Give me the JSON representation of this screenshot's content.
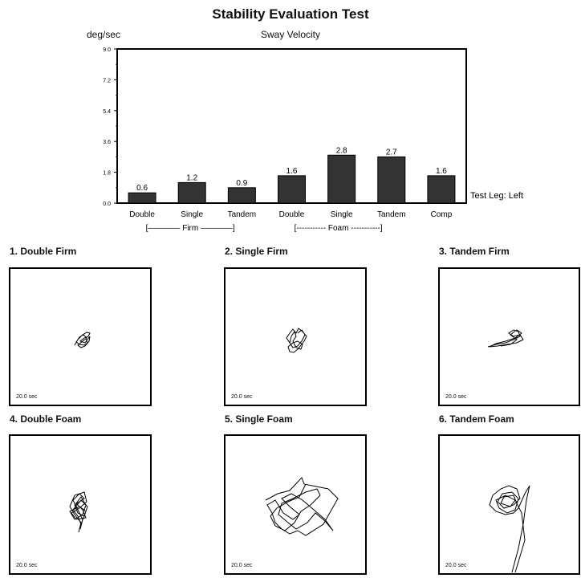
{
  "title": "Stability Evaluation Test",
  "chart_data": {
    "type": "bar",
    "title": "Sway Velocity",
    "ylabel": "deg/sec",
    "ylim": [
      0,
      9.0
    ],
    "yticks": [
      "0.0",
      "1.8",
      "3.6",
      "5.4",
      "7.2",
      "9.0"
    ],
    "categories": [
      "Double",
      "Single",
      "Tandem",
      "Double",
      "Single",
      "Tandem",
      "Comp"
    ],
    "values": [
      0.6,
      1.2,
      0.9,
      1.6,
      2.8,
      2.7,
      1.6
    ],
    "value_labels": [
      "0.6",
      "1.2",
      "0.9",
      "1.6",
      "2.8",
      "2.7",
      "1.6"
    ],
    "groups": [
      {
        "label": "Firm",
        "bracket_text": "[———— Firm ————]"
      },
      {
        "label": "Foam",
        "bracket_text": "[----------- Foam -----------]"
      }
    ],
    "annotation": "Test Leg: Left",
    "bar_color": "#333333"
  },
  "panels": [
    {
      "title": "1. Double Firm",
      "duration": "20.0 sec"
    },
    {
      "title": "2. Single Firm",
      "duration": "20.0 sec"
    },
    {
      "title": "3. Tandem Firm",
      "duration": "20.0 sec"
    },
    {
      "title": "4. Double Foam",
      "duration": "20.0 sec"
    },
    {
      "title": "5. Single Foam",
      "duration": "20.0 sec"
    },
    {
      "title": "6. Tandem Foam",
      "duration": "20.0 sec"
    }
  ]
}
